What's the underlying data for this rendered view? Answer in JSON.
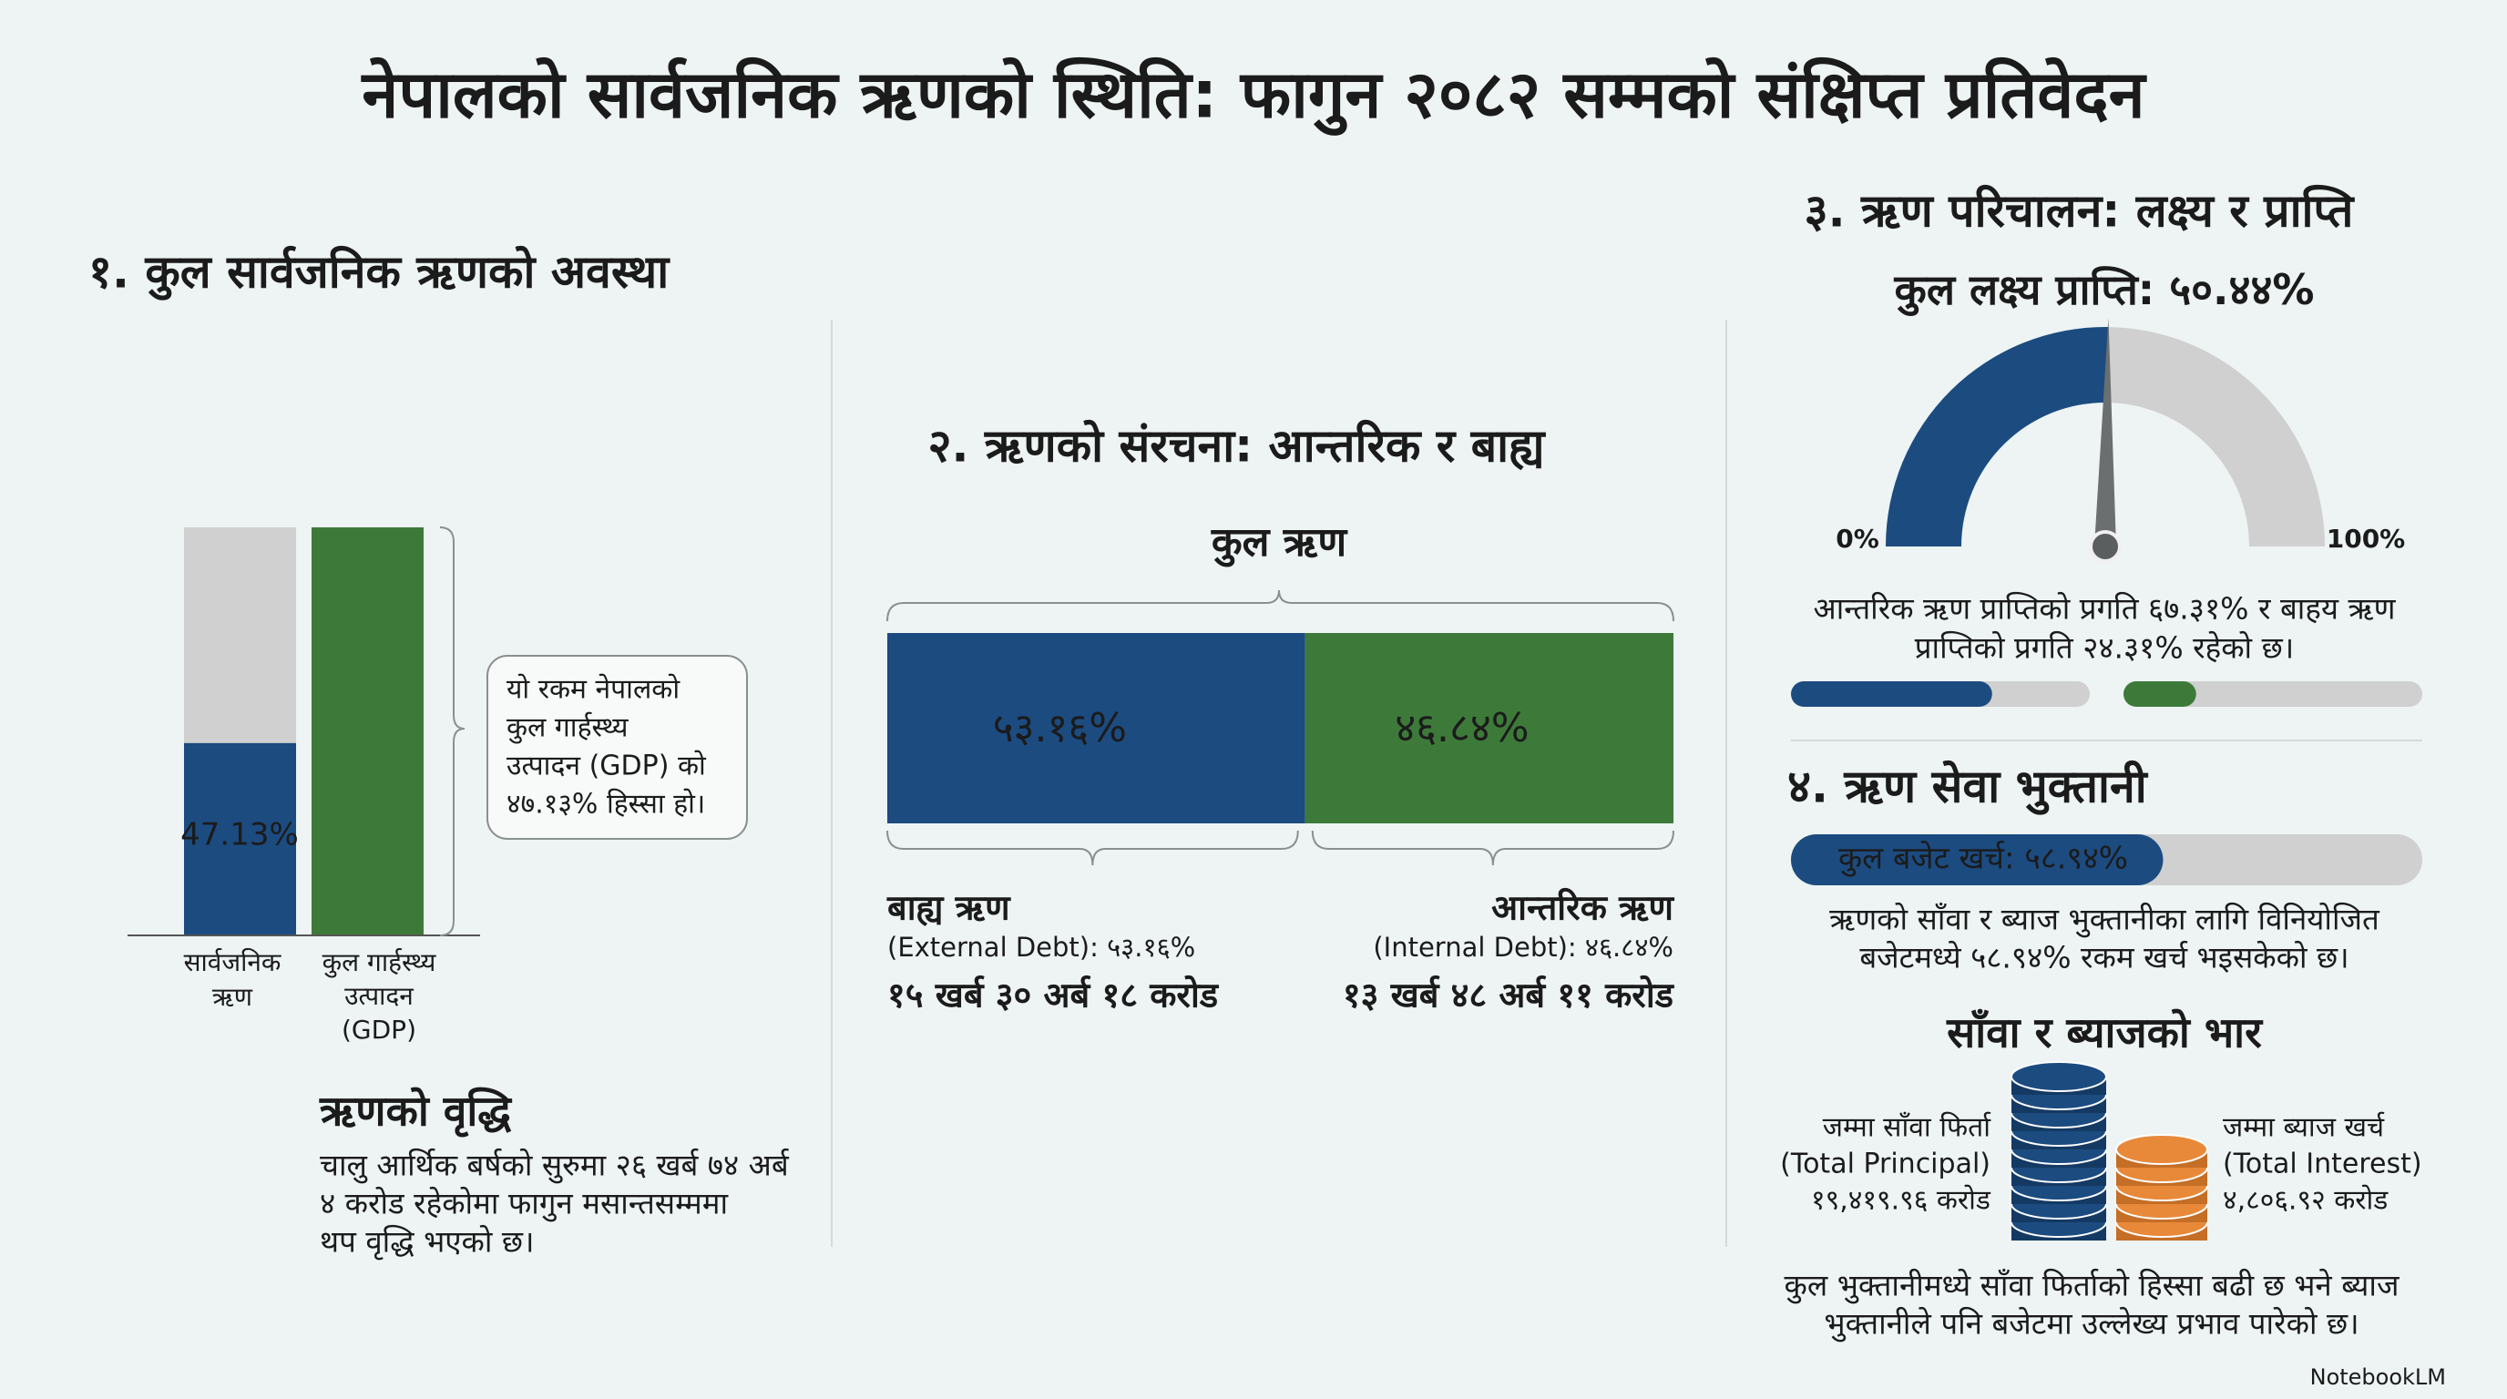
{
  "title": "नेपालको सार्वजनिक ऋणको स्थिति: फागुन २०८२ सम्मको संक्षिप्त प्रतिवेदन",
  "section1": {
    "heading": "१. कुल सार्वजनिक ऋणको अवस्था",
    "debt_bar": {
      "value": 47.13,
      "label": "47.13%",
      "color": "#1c4b80"
    },
    "gdp_color": "#3d7a3a",
    "bar_labels": [
      [
        "सार्वजनिक",
        "ऋण"
      ],
      [
        "कुल गार्हस्थ्य",
        "उत्पादन",
        "(GDP)"
      ]
    ],
    "callout": [
      "यो रकम नेपालको",
      "कुल गार्हस्थ्य",
      "उत्पादन (GDP) को",
      "४७.१३% हिस्सा हो।"
    ],
    "growth": {
      "title": "ऋणको वृद्धि",
      "lines": [
        "चालु आर्थिक बर्षको सुरुमा २६ खर्ब ७४ अर्ब",
        "४ करोड रहेकोमा फागुन मसान्तसम्ममा",
        "थप वृद्धि भएको छ।"
      ]
    }
  },
  "section2": {
    "heading": "२. ऋणको संरचना: आन्तरिक र बाह्य",
    "total_label": "कुल ऋण",
    "segments": [
      {
        "name": "बाह्य ऋण",
        "value": 53.16,
        "label": "५३.१६%",
        "color": "#1c4b80",
        "detail": "(External Debt): ५३.१६%",
        "amount": "१५ खर्ब ३० अर्ब १८ करोड"
      },
      {
        "name": "आन्तरिक ऋण",
        "value": 46.84,
        "label": "४६.८४%",
        "color": "#3d7a3a",
        "detail": "(Internal Debt): ४६.८४%",
        "amount": "१३ खर्ब ४८ अर्ब ११ करोड"
      }
    ]
  },
  "section3": {
    "heading": "३. ऋण परिचालन: लक्ष्य र प्राप्ति",
    "gauge": {
      "title": "कुल लक्ष्य प्राप्ति:",
      "value": 50.44,
      "label": "५०.४४%",
      "min": {
        "value": 0,
        "label": "0%"
      },
      "max": {
        "value": 100,
        "label": "100%"
      }
    },
    "note": [
      "आन्तरिक ऋण प्राप्तिको प्रगति ६७.३१% र बाहय ऋण",
      "प्राप्तिको प्रगति २४.३१% रहेको छ।"
    ],
    "progress": [
      {
        "value": 67.31,
        "color": "#1c4b80"
      },
      {
        "value": 24.31,
        "color": "#3d7a3a"
      }
    ]
  },
  "section4": {
    "heading": "४. ऋण सेवा भुक्तानी",
    "budget": {
      "value": 58.94,
      "label": "कुल बजेट खर्च: ५८.९४%"
    },
    "note": [
      "ऋणको साँवा र ब्याज भुक्तानीका लागि विनियोजित",
      "बजेटमध्ये ५८.९४% रकम खर्च भइसकेको छ।"
    ],
    "burden": {
      "title": "साँवा र ब्याजको भार",
      "principal": [
        "जम्मा साँवा फिर्ता",
        "(Total Principal)",
        "१९,४१९.९६ करोड"
      ],
      "interest": [
        "जम्मा ब्याज खर्च",
        "(Total Interest)",
        "४,८०६.९२ करोड"
      ]
    },
    "footer": [
      "कुल भुक्तानीमध्ये साँवा फिर्ताको हिस्सा बढी छ भने ब्याज",
      "भुक्तानीले पनि बजेटमा उल्लेख्य प्रभाव पारेको छ।"
    ]
  },
  "brand": "NotebookLM"
}
